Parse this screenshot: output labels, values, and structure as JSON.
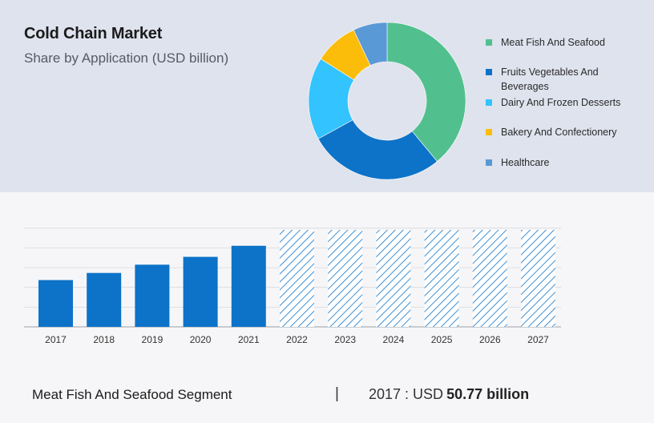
{
  "header": {
    "title": "Cold Chain Market",
    "subtitle": "Share by Application (USD billion)"
  },
  "footer": {
    "segment": "Meat Fish And Seafood Segment",
    "divider": "|",
    "year_label": "2017 : USD",
    "value_label": "50.77 billion"
  },
  "chart_data": [
    {
      "type": "pie",
      "donut": true,
      "slices": [
        {
          "label": "Meat Fish And Seafood",
          "share": 0.39,
          "color": "#52c08e"
        },
        {
          "label": "Fruits Vegetables And Beverages",
          "share": 0.28,
          "color": "#0c73c8"
        },
        {
          "label": "Dairy And Frozen Desserts",
          "share": 0.17,
          "color": "#33c3ff"
        },
        {
          "label": "Bakery And Confectionery",
          "share": 0.09,
          "color": "#fbbd0a"
        },
        {
          "label": "Healthcare",
          "share": 0.07,
          "color": "#5999d6"
        }
      ],
      "legend_position": "right"
    },
    {
      "type": "bar",
      "categories": [
        "2017",
        "2018",
        "2019",
        "2020",
        "2021",
        "2022",
        "2023",
        "2024",
        "2025",
        "2026",
        "2027"
      ],
      "values": [
        50.77,
        58.5,
        67.5,
        76.0,
        88.0,
        105.3,
        105.3,
        105.3,
        105.3,
        105.3,
        105.3
      ],
      "forecast_from": "2022",
      "bar_color": "#0c73c8",
      "forecast_style": "hatched",
      "ylim": [
        0,
        120
      ],
      "grid": true
    }
  ]
}
